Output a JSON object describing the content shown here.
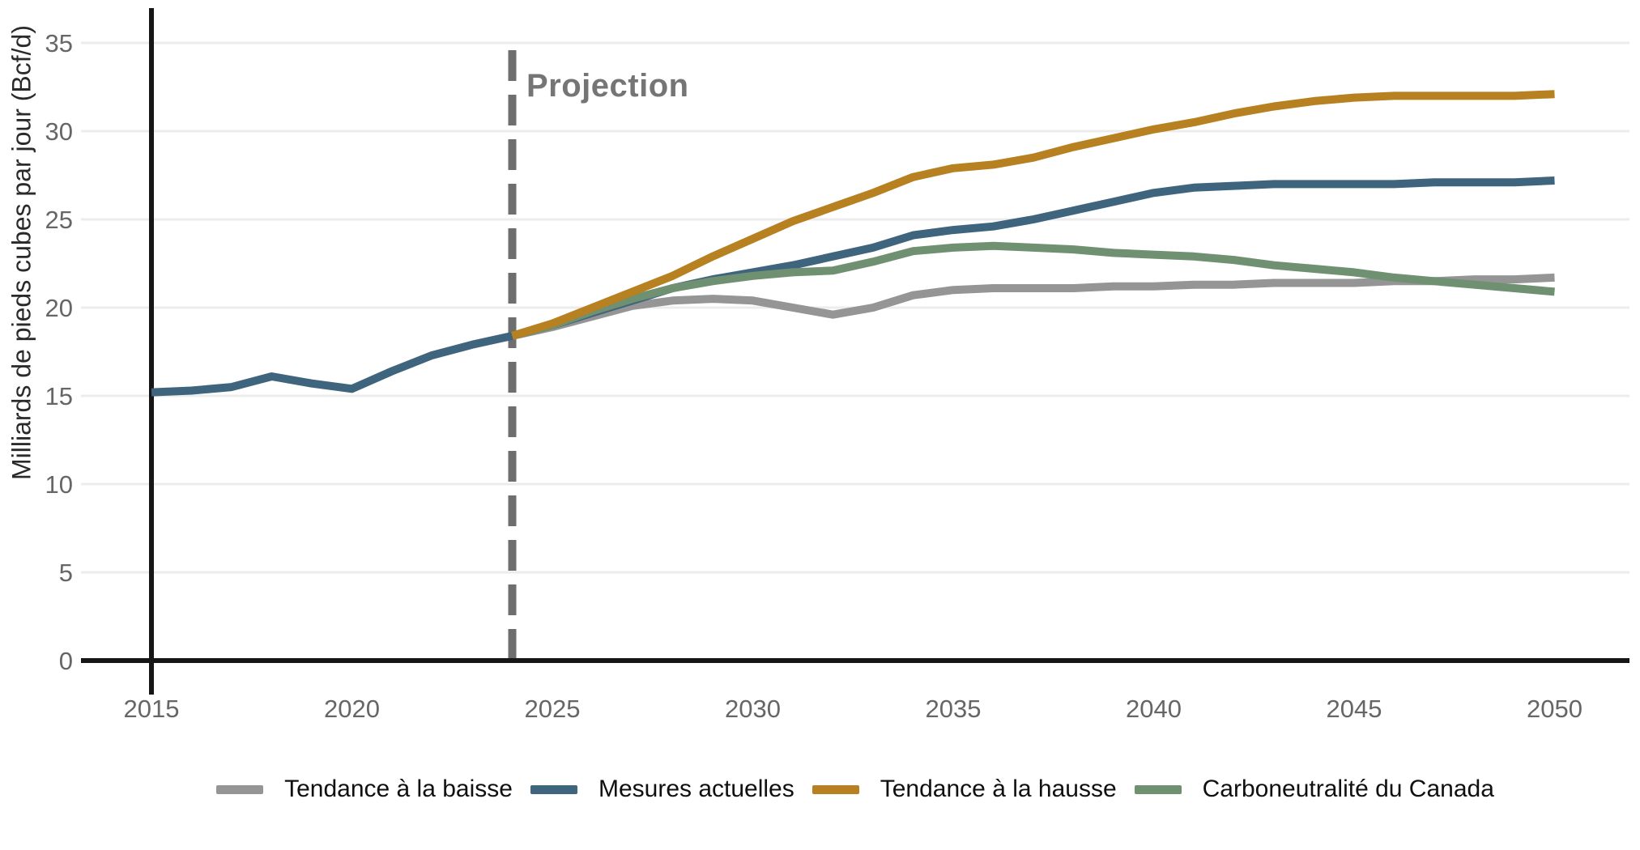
{
  "chart_data": {
    "type": "line",
    "title": "",
    "xlabel": "",
    "ylabel": "Milliards de pieds cubes par jour (Bcf/d)",
    "x": [
      2015,
      2016,
      2017,
      2018,
      2019,
      2020,
      2021,
      2022,
      2023,
      2024,
      2025,
      2026,
      2027,
      2028,
      2029,
      2030,
      2031,
      2032,
      2033,
      2034,
      2035,
      2036,
      2037,
      2038,
      2039,
      2040,
      2041,
      2042,
      2043,
      2044,
      2045,
      2046,
      2047,
      2048,
      2049,
      2050
    ],
    "x_ticks": [
      2015,
      2020,
      2025,
      2030,
      2035,
      2040,
      2045,
      2050
    ],
    "y_ticks": [
      0,
      5,
      10,
      15,
      20,
      25,
      30,
      35
    ],
    "xlim": [
      2013.2,
      2051.9
    ],
    "ylim": [
      0,
      36.5
    ],
    "grid": "horizontal",
    "legend_position": "bottom",
    "annotation": {
      "text": "Projection",
      "x": 2024,
      "style": "dashed-vertical-line",
      "color": "#6e6e6e"
    },
    "projection_start_year": 2024,
    "series": [
      {
        "name": "Tendance à la baisse",
        "color": "#959595",
        "values": [
          null,
          null,
          null,
          null,
          null,
          null,
          null,
          null,
          null,
          18.4,
          18.9,
          19.5,
          20.1,
          20.4,
          20.5,
          20.4,
          20.0,
          19.6,
          20.0,
          20.7,
          21.0,
          21.1,
          21.1,
          21.1,
          21.2,
          21.2,
          21.3,
          21.3,
          21.4,
          21.4,
          21.4,
          21.5,
          21.5,
          21.6,
          21.6,
          21.7
        ]
      },
      {
        "name": "Mesures actuelles",
        "color": "#3f647e",
        "values": [
          15.2,
          15.3,
          15.5,
          16.1,
          15.7,
          15.4,
          16.4,
          17.3,
          17.9,
          18.4,
          19.0,
          19.7,
          20.4,
          21.1,
          21.6,
          22.0,
          22.4,
          22.9,
          23.4,
          24.1,
          24.4,
          24.6,
          25.0,
          25.5,
          26.0,
          26.5,
          26.8,
          26.9,
          27.0,
          27.0,
          27.0,
          27.0,
          27.1,
          27.1,
          27.1,
          27.2
        ]
      },
      {
        "name": "Tendance à la hausse",
        "color": "#b78020",
        "values": [
          null,
          null,
          null,
          null,
          null,
          null,
          null,
          null,
          null,
          18.4,
          19.1,
          20.0,
          20.9,
          21.8,
          22.9,
          23.9,
          24.9,
          25.7,
          26.5,
          27.4,
          27.9,
          28.1,
          28.5,
          29.1,
          29.6,
          30.1,
          30.5,
          31.0,
          31.4,
          31.7,
          31.9,
          32.0,
          32.0,
          32.0,
          32.0,
          32.1
        ]
      },
      {
        "name": "Carboneutralité du Canada",
        "color": "#6f9071",
        "values": [
          null,
          null,
          null,
          null,
          null,
          null,
          null,
          null,
          null,
          18.4,
          19.0,
          19.8,
          20.5,
          21.1,
          21.5,
          21.8,
          22.0,
          22.1,
          22.6,
          23.2,
          23.4,
          23.5,
          23.4,
          23.3,
          23.1,
          23.0,
          22.9,
          22.7,
          22.4,
          22.2,
          22.0,
          21.7,
          21.5,
          21.3,
          21.1,
          20.9
        ]
      }
    ],
    "axis_color": "#161616",
    "gridline_color": "#ececec",
    "tick_label_color": "#666666"
  }
}
